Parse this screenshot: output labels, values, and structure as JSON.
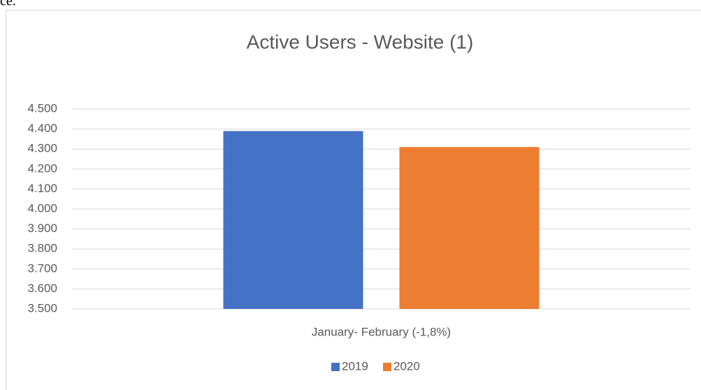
{
  "header_fragment": "ce.",
  "chart_data": {
    "type": "bar",
    "title": "Active Users - Website (1)",
    "categories": [
      "January- February (-1,8%)"
    ],
    "series": [
      {
        "name": "2019",
        "color": "#4472c4",
        "values": [
          4390
        ]
      },
      {
        "name": "2020",
        "color": "#ed7d31",
        "values": [
          4310
        ]
      }
    ],
    "ylim": [
      3500,
      4500
    ],
    "yticks": [
      {
        "value": 3500,
        "label": "3.500"
      },
      {
        "value": 3600,
        "label": "3.600"
      },
      {
        "value": 3700,
        "label": "3.700"
      },
      {
        "value": 3800,
        "label": "3.800"
      },
      {
        "value": 3900,
        "label": "3.900"
      },
      {
        "value": 4000,
        "label": "4.000"
      },
      {
        "value": 4100,
        "label": "4.100"
      },
      {
        "value": 4200,
        "label": "4.200"
      },
      {
        "value": 4300,
        "label": "4.300"
      },
      {
        "value": 4400,
        "label": "4.400"
      },
      {
        "value": 4500,
        "label": "4.500"
      }
    ],
    "grid": true,
    "legend": "bottom"
  }
}
